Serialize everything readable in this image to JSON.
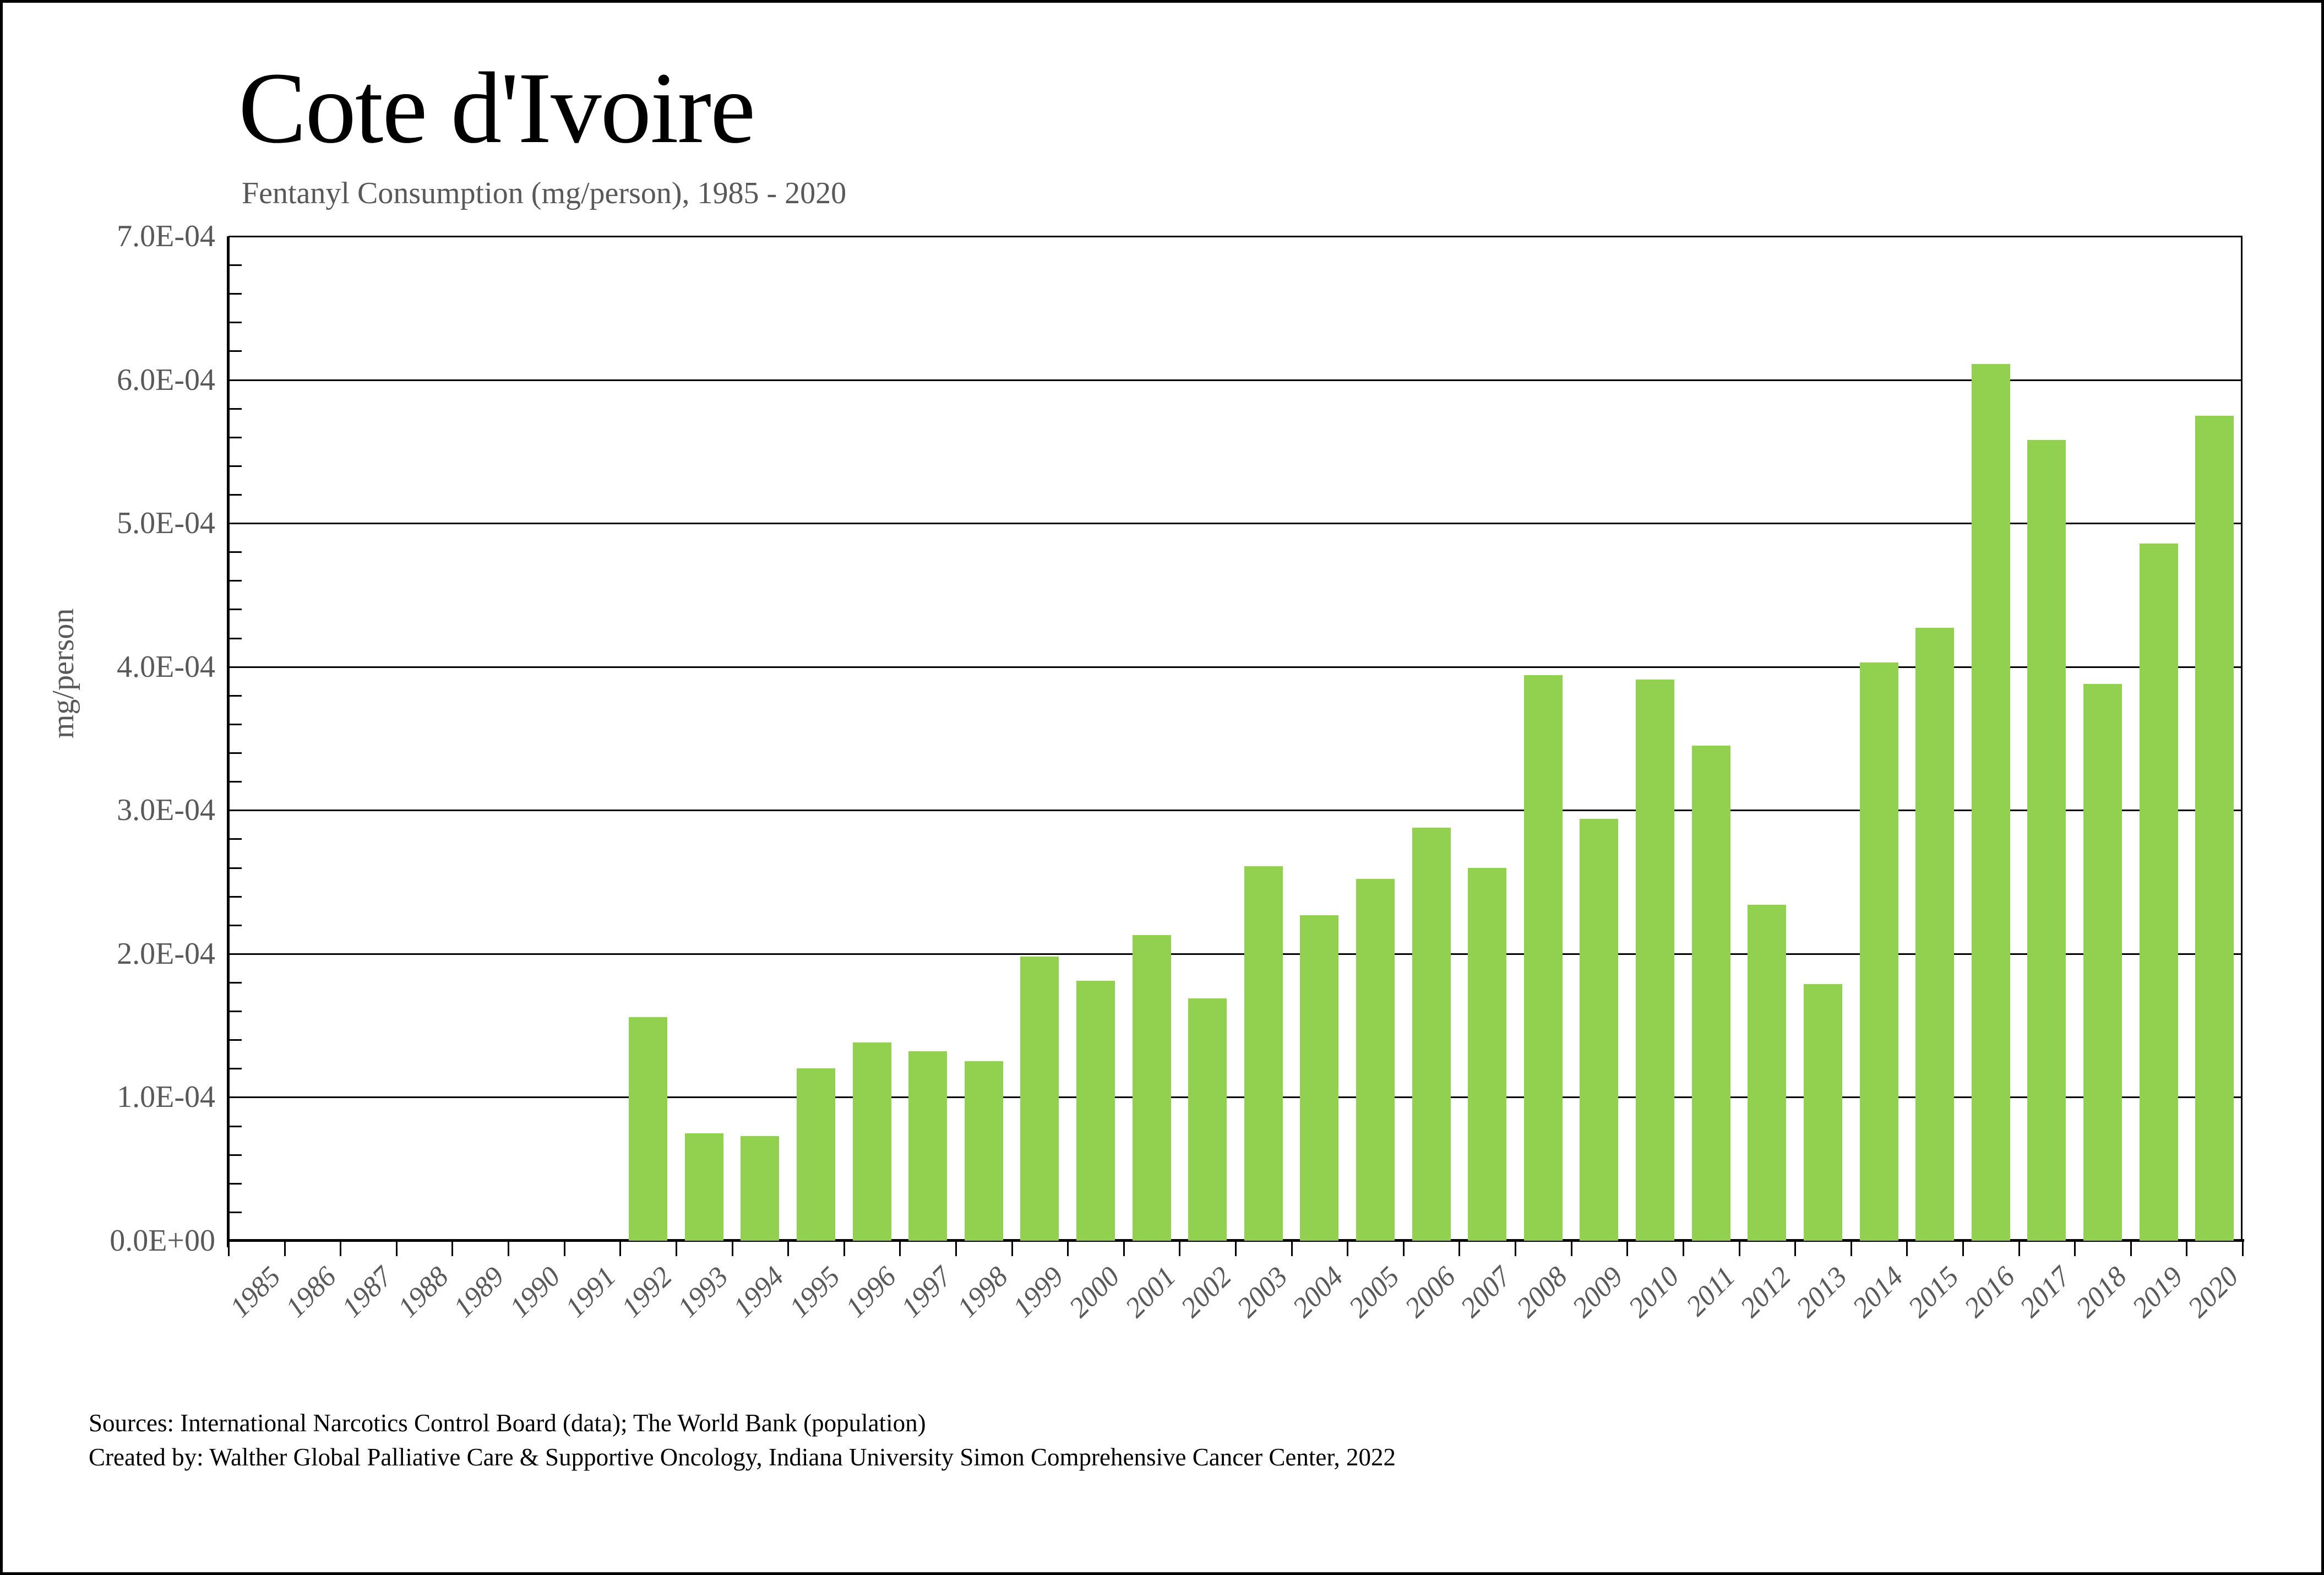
{
  "title": "Cote d'Ivoire",
  "subtitle": "Fentanyl Consumption (mg/person), 1985 - 2020",
  "y_axis": {
    "label": "mg/person",
    "tick_labels": [
      "0.0E+00",
      "1.0E-04",
      "2.0E-04",
      "3.0E-04",
      "4.0E-04",
      "5.0E-04",
      "6.0E-04",
      "7.0E-04"
    ]
  },
  "footer": {
    "line1": "Sources: International Narcotics Control Board (data); The World Bank (population)",
    "line2": "Created by: Walther Global Palliative Care & Supportive Oncology, Indiana University Simon Comprehensive Cancer Center, 2022"
  },
  "colors": {
    "bar": "#92D050",
    "axis": "#000000",
    "label_gray": "#595959"
  },
  "chart_data": {
    "type": "bar",
    "title": "Cote d'Ivoire",
    "subtitle": "Fentanyl Consumption (mg/person), 1985 - 2020",
    "xlabel": "",
    "ylabel": "mg/person",
    "ylim": [
      0,
      0.0007
    ],
    "ytick_step": 0.0001,
    "grid": "horizontal-major",
    "legend": "none",
    "categories": [
      "1985",
      "1986",
      "1987",
      "1988",
      "1989",
      "1990",
      "1991",
      "1992",
      "1993",
      "1994",
      "1995",
      "1996",
      "1997",
      "1998",
      "1999",
      "2000",
      "2001",
      "2002",
      "2003",
      "2004",
      "2005",
      "2006",
      "2007",
      "2008",
      "2009",
      "2010",
      "2011",
      "2012",
      "2013",
      "2014",
      "2015",
      "2016",
      "2017",
      "2018",
      "2019",
      "2020"
    ],
    "values": [
      0,
      0,
      0,
      0,
      0,
      0,
      0,
      0.000156,
      7.5e-05,
      7.3e-05,
      0.00012,
      0.000138,
      0.000132,
      0.000125,
      0.000198,
      0.000181,
      0.000213,
      0.000169,
      0.000261,
      0.000227,
      0.000252,
      0.000288,
      0.00026,
      0.000394,
      0.000294,
      0.000391,
      0.000345,
      0.000234,
      0.000179,
      0.000403,
      0.000427,
      0.000611,
      0.000558,
      0.000388,
      0.000486,
      0.000575
    ]
  }
}
